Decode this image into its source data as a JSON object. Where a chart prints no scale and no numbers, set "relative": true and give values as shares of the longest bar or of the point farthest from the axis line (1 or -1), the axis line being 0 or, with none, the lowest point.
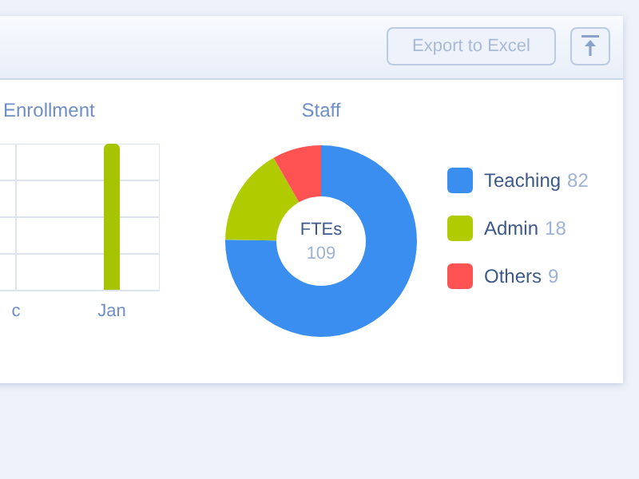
{
  "chart_data": [
    {
      "type": "bar",
      "title": "Enrollment",
      "categories": [
        "c",
        "Jan"
      ],
      "values": [
        null,
        1
      ],
      "color": "#a6c400",
      "relative": true,
      "grid": true,
      "annotations": [
        "Export to Excel"
      ]
    },
    {
      "type": "donut",
      "title": "Staff",
      "categories": [
        "Teaching",
        "Admin",
        "Others"
      ],
      "values": [
        82,
        18,
        9
      ],
      "colors": [
        "#3a8ef0",
        "#b0cc00",
        "#ff5252"
      ],
      "legend": "right",
      "data_labels": true,
      "annotations": [
        "FTEs",
        "109"
      ]
    }
  ]
}
